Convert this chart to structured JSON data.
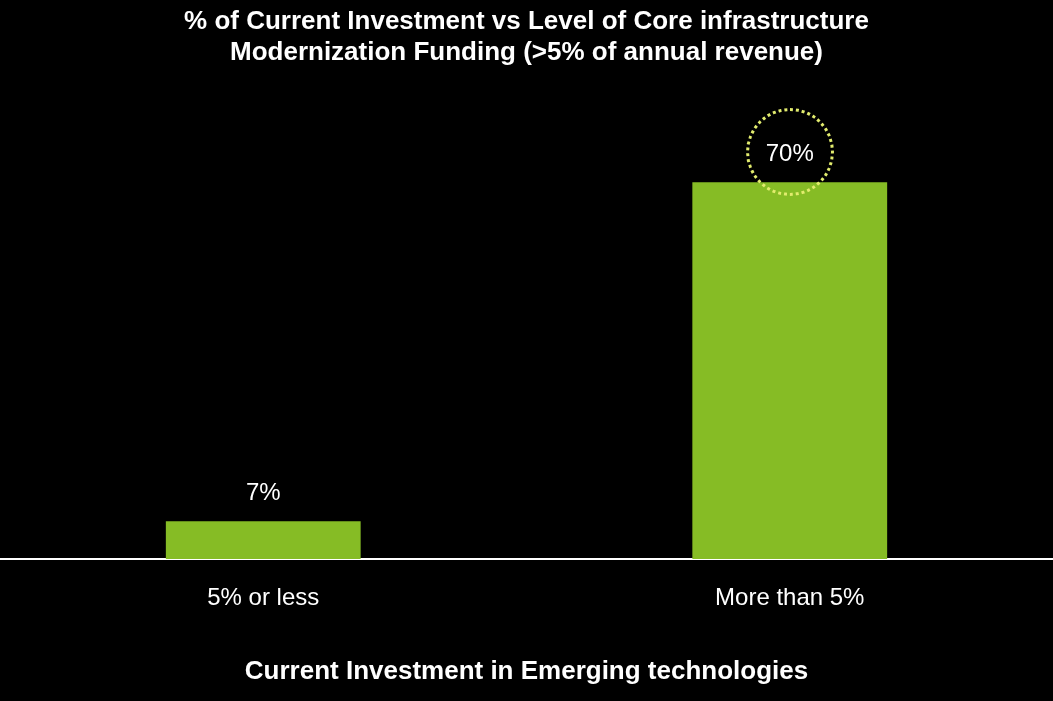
{
  "chart_data": {
    "type": "bar",
    "title": "% of Current Investment vs Level of Core infrastructure Modernization Funding (>5% of annual revenue)",
    "xlabel": "Current Investment in Emerging technologies",
    "categories": [
      "5% or less",
      "More than 5%"
    ],
    "values": [
      7,
      70
    ],
    "value_labels": [
      "7%",
      "70%"
    ],
    "color": "#86bc25",
    "legend": false
  }
}
